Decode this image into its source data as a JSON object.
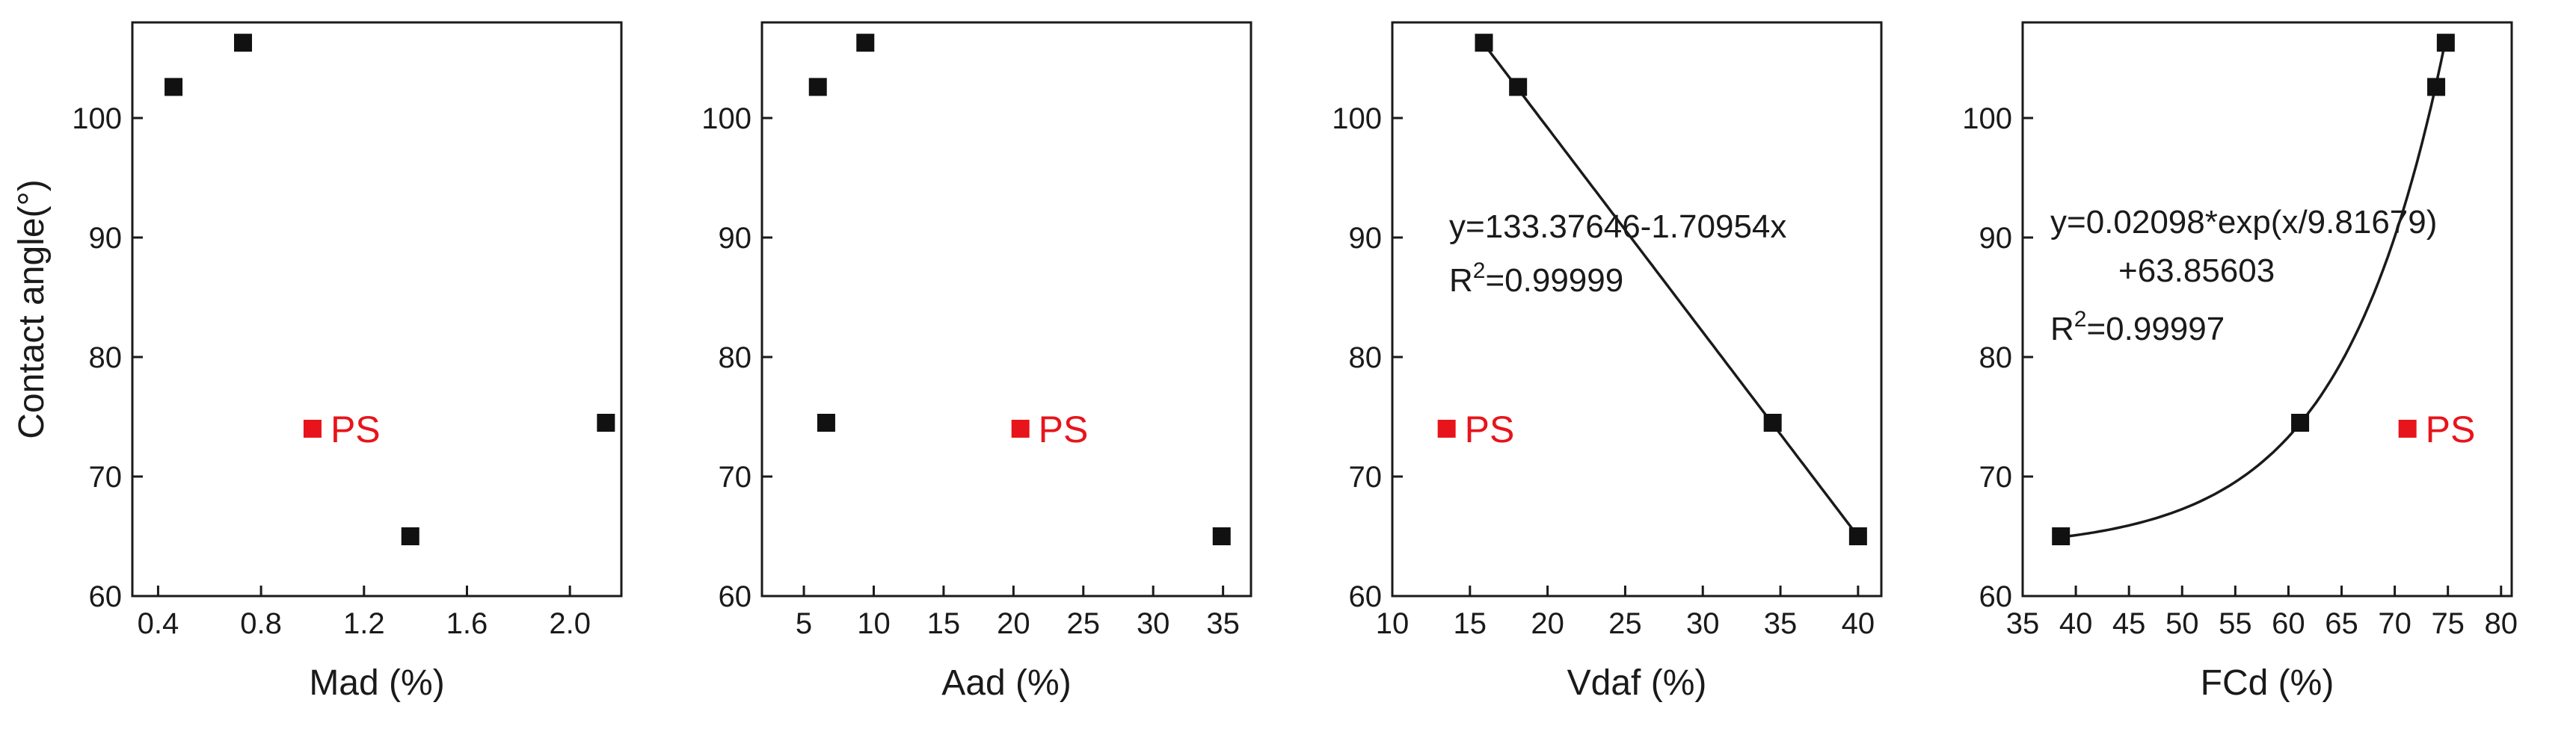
{
  "chart_data": [
    {
      "type": "scatter",
      "xlabel": "Mad (%)",
      "ylabel": "Contact angle(°)",
      "xlim": [
        0.3,
        2.2
      ],
      "ylim": [
        60,
        108
      ],
      "x_ticks": [
        "0.4",
        "0.8",
        "1.2",
        "1.6",
        "2.0"
      ],
      "x_tick_values": [
        0.4,
        0.8,
        1.2,
        1.6,
        2.0
      ],
      "y_ticks": [
        "60",
        "70",
        "80",
        "90",
        "100"
      ],
      "y_tick_values": [
        60,
        70,
        80,
        90,
        100
      ],
      "series": [
        {
          "points": [
            [
              0.46,
              102.6
            ],
            [
              0.73,
              106.3
            ],
            [
              1.38,
              65.0
            ],
            [
              2.14,
              74.5
            ]
          ],
          "color": "#111111"
        }
      ],
      "highlight": {
        "label": "PS",
        "x": 1.0,
        "y": 74.0,
        "color": "#e8141b"
      }
    },
    {
      "type": "scatter",
      "xlabel": "Aad (%)",
      "xlim": [
        2,
        37
      ],
      "ylim": [
        60,
        108
      ],
      "x_ticks": [
        "5",
        "10",
        "15",
        "20",
        "25",
        "30",
        "35"
      ],
      "x_tick_values": [
        5,
        10,
        15,
        20,
        25,
        30,
        35
      ],
      "y_ticks": [
        "60",
        "70",
        "80",
        "90",
        "100"
      ],
      "y_tick_values": [
        60,
        70,
        80,
        90,
        100
      ],
      "series": [
        {
          "points": [
            [
              6.0,
              102.6
            ],
            [
              9.4,
              106.3
            ],
            [
              6.6,
              74.5
            ],
            [
              34.9,
              65.0
            ]
          ],
          "color": "#111111"
        }
      ],
      "highlight": {
        "label": "PS",
        "x": 20.5,
        "y": 74.0,
        "color": "#e8141b"
      }
    },
    {
      "type": "scatter",
      "xlabel": "Vdaf (%)",
      "xlim": [
        10,
        41.5
      ],
      "ylim": [
        60,
        108
      ],
      "x_ticks": [
        "10",
        "15",
        "20",
        "25",
        "30",
        "35",
        "40"
      ],
      "x_tick_values": [
        10,
        15,
        20,
        25,
        30,
        35,
        40
      ],
      "y_ticks": [
        "60",
        "70",
        "80",
        "90",
        "100"
      ],
      "y_tick_values": [
        60,
        70,
        80,
        90,
        100
      ],
      "series": [
        {
          "points": [
            [
              15.9,
              106.3
            ],
            [
              18.1,
              102.6
            ],
            [
              34.5,
              74.5
            ],
            [
              40.0,
              65.0
            ]
          ],
          "color": "#111111"
        }
      ],
      "fit": {
        "kind": "linear",
        "a": 133.37646,
        "b": -1.70954,
        "x_range": [
          15.9,
          40.0
        ]
      },
      "equation_lines": [
        "y=133.37646-1.70954x"
      ],
      "r2_value": "=0.99999",
      "highlight": {
        "label": "PS",
        "x": 13.5,
        "y": 74.0,
        "color": "#e8141b"
      }
    },
    {
      "type": "scatter",
      "xlabel": "FCd (%)",
      "xlim": [
        35,
        81
      ],
      "ylim": [
        60,
        108
      ],
      "x_ticks": [
        "35",
        "40",
        "45",
        "50",
        "55",
        "60",
        "65",
        "70",
        "75",
        "80"
      ],
      "x_tick_values": [
        35,
        40,
        45,
        50,
        55,
        60,
        65,
        70,
        75,
        80
      ],
      "y_ticks": [
        "60",
        "70",
        "80",
        "90",
        "100"
      ],
      "y_tick_values": [
        60,
        70,
        80,
        90,
        100
      ],
      "series": [
        {
          "points": [
            [
              38.6,
              65.0
            ],
            [
              61.1,
              74.5
            ],
            [
              73.9,
              102.6
            ],
            [
              74.8,
              106.3
            ]
          ],
          "color": "#111111"
        }
      ],
      "fit": {
        "kind": "exponential",
        "a": 0.02098,
        "t": 9.81679,
        "c": 63.85603,
        "x_range": [
          38.6,
          74.8
        ]
      },
      "equation_lines": [
        "y=0.02098*exp(x/9.81679)",
        "+63.85603"
      ],
      "r2_value": "=0.99997",
      "highlight": {
        "label": "PS",
        "x": 71.2,
        "y": 74.0,
        "color": "#e8141b"
      }
    }
  ]
}
